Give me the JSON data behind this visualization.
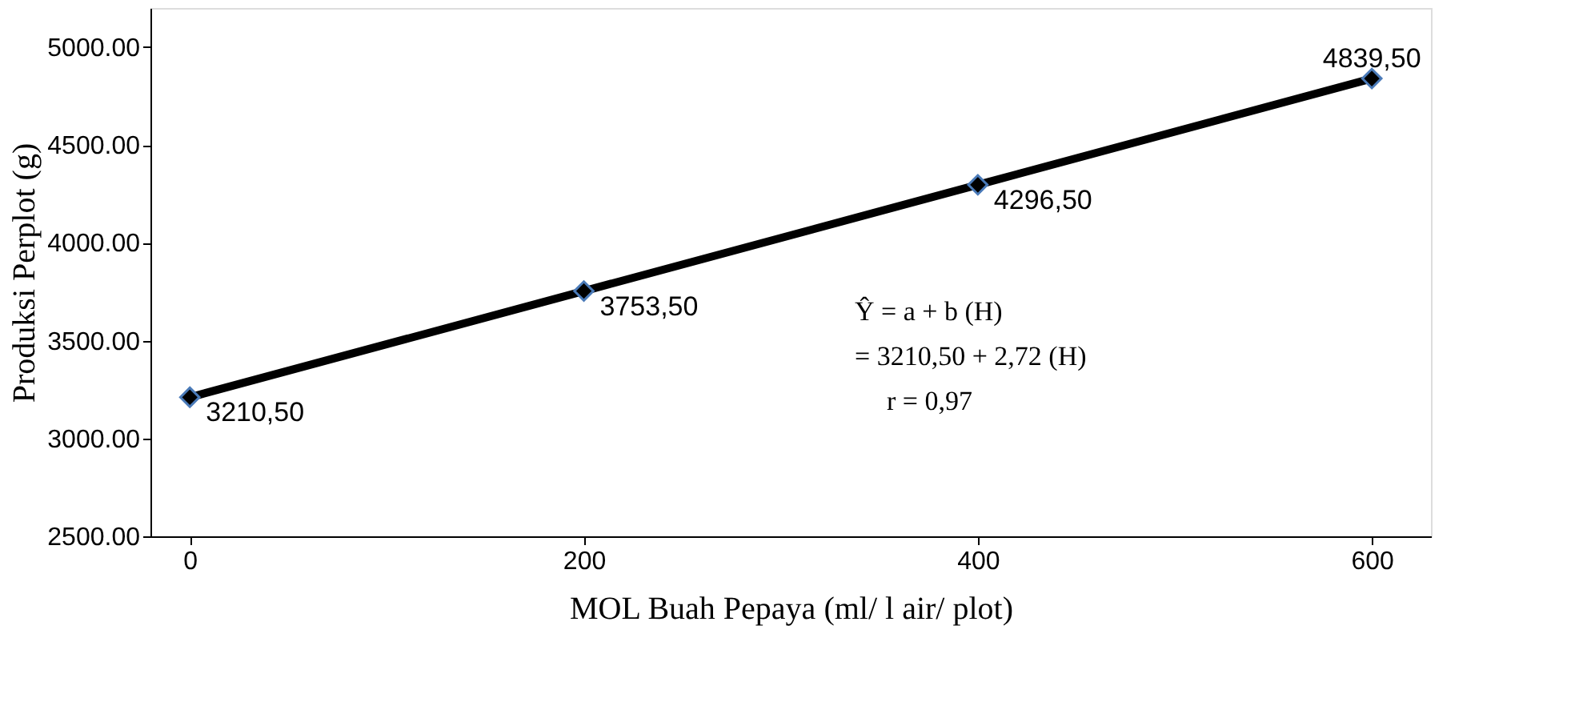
{
  "chart_data": {
    "type": "line",
    "xlabel": "MOL Buah Pepaya (ml/ l air/ plot)",
    "ylabel": "Produksi Perplot (g)",
    "x": [
      0,
      200,
      400,
      600
    ],
    "series": [
      {
        "color": "#000000",
        "values": [
          3210.5,
          3753.5,
          4296.5,
          4839.5
        ],
        "value_labels": [
          "3210,50",
          "3753,50",
          "4296,50",
          "4839,50"
        ]
      }
    ],
    "xlim": [
      -20,
      630
    ],
    "xticks": [
      0,
      200,
      400,
      600
    ],
    "ylim": [
      2500,
      5200
    ],
    "yticks": [
      {
        "value": 2500,
        "label": "2500.00"
      },
      {
        "value": 3000,
        "label": "3000.00"
      },
      {
        "value": 3500,
        "label": "3500.00"
      },
      {
        "value": 4000,
        "label": "4000.00"
      },
      {
        "value": 4500,
        "label": "4500.00"
      },
      {
        "value": 5000,
        "label": "5000.00"
      }
    ],
    "annotations": [
      "Ŷ   =  a + b (H)",
      "     = 3210,50 + 2,72 (H)",
      "r  =  0,97"
    ],
    "marker": "diamond",
    "grid": false
  }
}
